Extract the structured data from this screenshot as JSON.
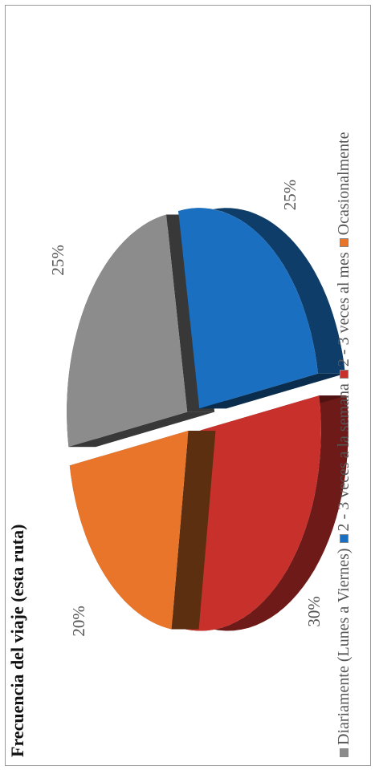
{
  "chart_data": {
    "type": "pie",
    "title": "Frecuencia del viaje (esta ruta)",
    "categories": [
      "Diariamente (Lunes a Viernes)",
      "2 - 3 veces a la semana",
      "2 - 3 veces al mes",
      "Ocasionalmente"
    ],
    "values": [
      25,
      25,
      30,
      20
    ],
    "labels": [
      "25%",
      "25%",
      "30%",
      "20%"
    ],
    "colors": [
      "#8c8c8c",
      "#1a6fc0",
      "#c8302c",
      "#e8752a"
    ],
    "legend_position": "bottom"
  }
}
